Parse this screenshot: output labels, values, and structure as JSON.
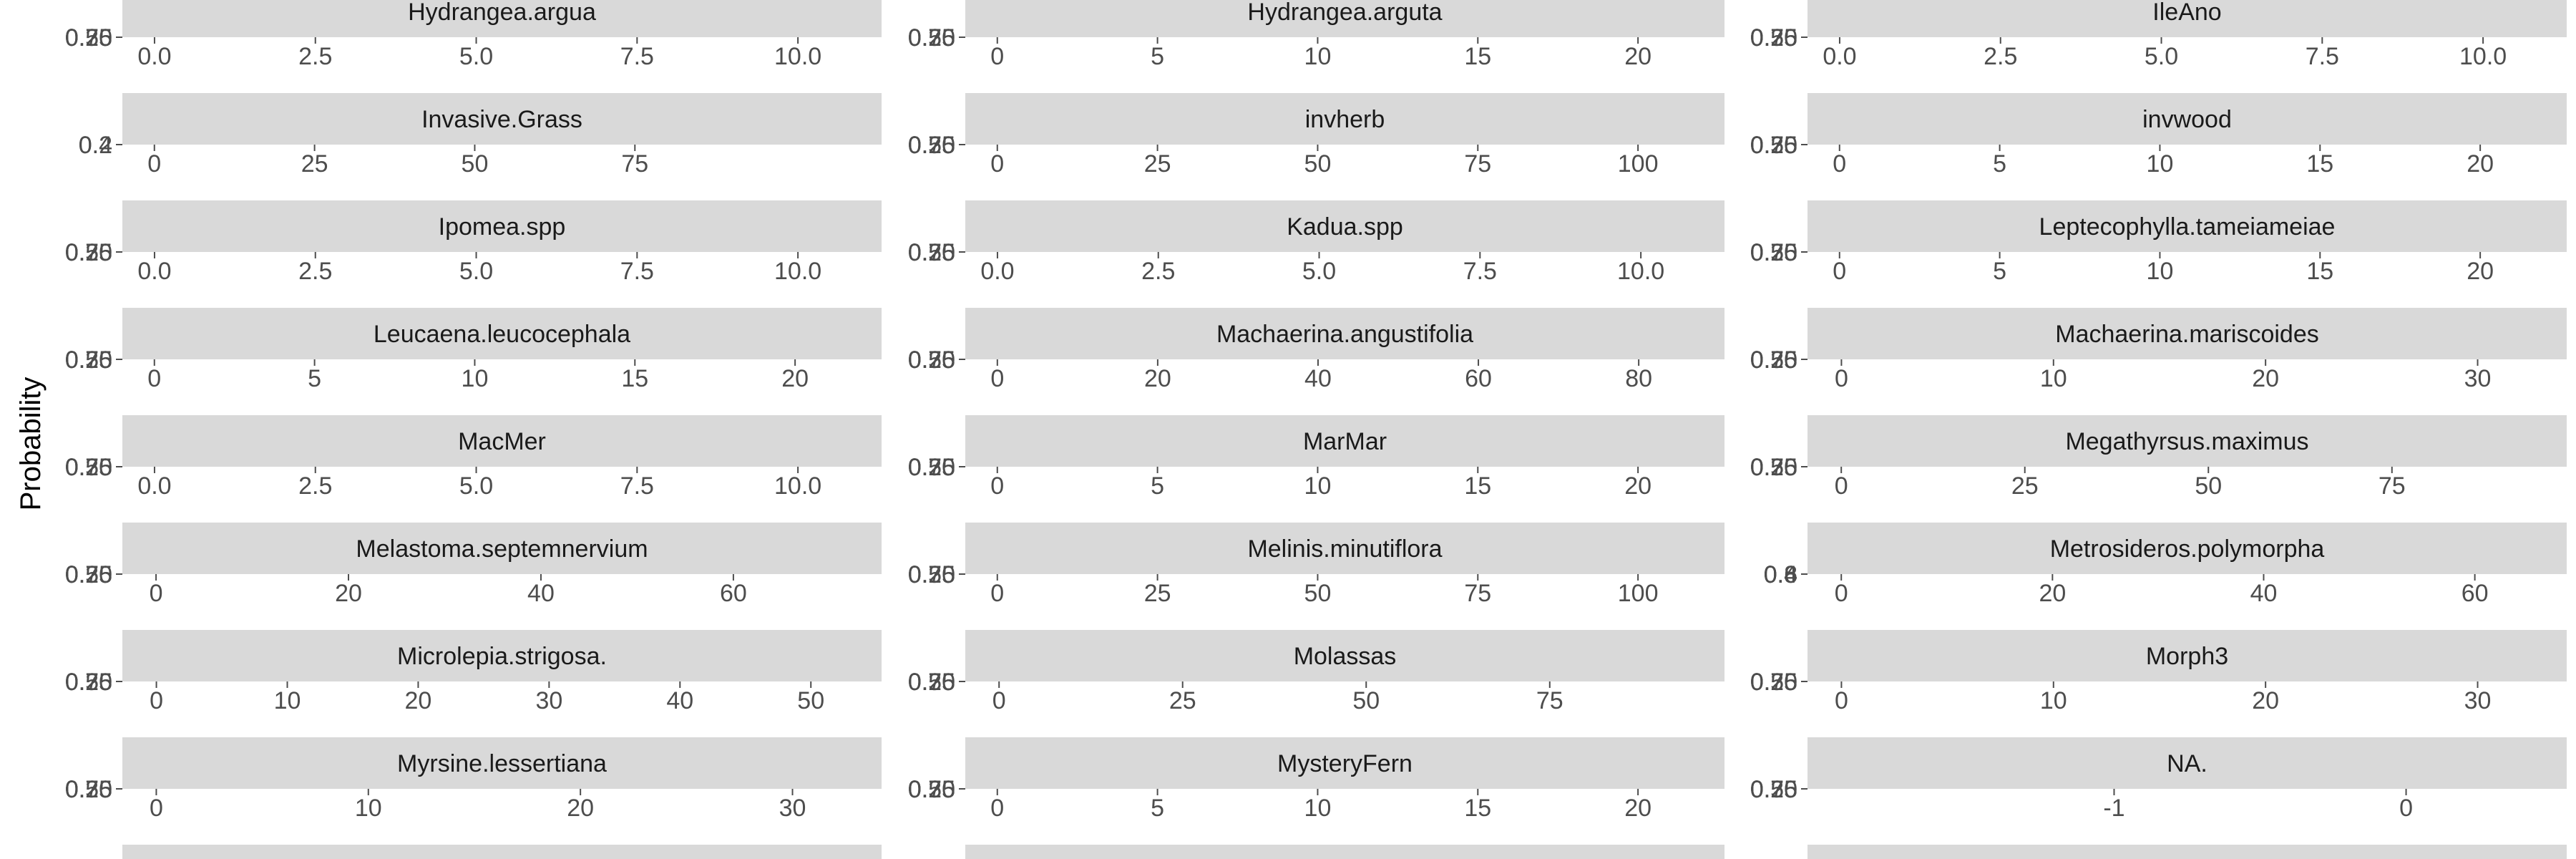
{
  "chart_data": {
    "type": "line",
    "ylabel": "Probability",
    "strip_color": "#d9d9d9",
    "tick_color": "#4d4d4d",
    "panels": [
      {
        "name": "Hydrangea.argua",
        "xlim": [
          -0.5,
          11.3
        ],
        "ticks": [
          "0.0",
          "2.5",
          "5.0",
          "7.5",
          "10.0"
        ],
        "tick_values": [
          0,
          2.5,
          5,
          7.5,
          10
        ],
        "y_overlap": [
          "0.75",
          "0.50",
          "0.25"
        ]
      },
      {
        "name": "Hydrangea.arguta",
        "xlim": [
          -1,
          22.7
        ],
        "ticks": [
          "0",
          "5",
          "10",
          "15",
          "20"
        ],
        "tick_values": [
          0,
          5,
          10,
          15,
          20
        ],
        "y_overlap": [
          "0.75",
          "0.50",
          "0.25"
        ]
      },
      {
        "name": "IleAno",
        "xlim": [
          -0.5,
          11.3
        ],
        "ticks": [
          "0.0",
          "2.5",
          "5.0",
          "7.5",
          "10.0"
        ],
        "tick_values": [
          0,
          2.5,
          5,
          7.5,
          10
        ],
        "y_overlap": [
          "0.75",
          "0.50",
          "0.25"
        ]
      },
      {
        "name": "Invasive.Grass",
        "xlim": [
          -5,
          113.5
        ],
        "ticks": [
          "0",
          "25",
          "50",
          "75"
        ],
        "tick_values": [
          0,
          25,
          50,
          75
        ],
        "y_overlap": [
          "0.4",
          "0.2"
        ]
      },
      {
        "name": "invherb",
        "xlim": [
          -5,
          113.5
        ],
        "ticks": [
          "0",
          "25",
          "50",
          "75",
          "100"
        ],
        "tick_values": [
          0,
          25,
          50,
          75,
          100
        ],
        "y_overlap": [
          "0.75",
          "0.50",
          "0.25"
        ]
      },
      {
        "name": "invwood",
        "xlim": [
          -1,
          22.7
        ],
        "ticks": [
          "0",
          "5",
          "10",
          "15",
          "20"
        ],
        "tick_values": [
          0,
          5,
          10,
          15,
          20
        ],
        "y_overlap": [
          "0.75",
          "0.50",
          "0.25"
        ]
      },
      {
        "name": "Ipomea.spp",
        "xlim": [
          -0.5,
          11.3
        ],
        "ticks": [
          "0.0",
          "2.5",
          "5.0",
          "7.5",
          "10.0"
        ],
        "tick_values": [
          0,
          2.5,
          5,
          7.5,
          10
        ],
        "y_overlap": [
          "0.75",
          "0.50",
          "0.25"
        ]
      },
      {
        "name": "Kadua.spp",
        "xlim": [
          -0.5,
          11.3
        ],
        "ticks": [
          "0.0",
          "2.5",
          "5.0",
          "7.5",
          "10.0"
        ],
        "tick_values": [
          0,
          2.5,
          5,
          7.5,
          10
        ],
        "y_overlap": [
          "0.75",
          "0.50",
          "0.25"
        ]
      },
      {
        "name": "Leptecophylla.tameiameiae",
        "xlim": [
          -1,
          22.7
        ],
        "ticks": [
          "0",
          "5",
          "10",
          "15",
          "20"
        ],
        "tick_values": [
          0,
          5,
          10,
          15,
          20
        ],
        "y_overlap": [
          "0.75",
          "0.50",
          "0.25"
        ]
      },
      {
        "name": "Leucaena.leucocephala",
        "xlim": [
          -1,
          22.7
        ],
        "ticks": [
          "0",
          "5",
          "10",
          "15",
          "20"
        ],
        "tick_values": [
          0,
          5,
          10,
          15,
          20
        ],
        "y_overlap": [
          "0.75",
          "0.50",
          "0.25"
        ]
      },
      {
        "name": "Machaerina.angustifolia",
        "xlim": [
          -4,
          90.7
        ],
        "ticks": [
          "0",
          "20",
          "40",
          "60",
          "80"
        ],
        "tick_values": [
          0,
          20,
          40,
          60,
          80
        ],
        "y_overlap": [
          "0.75",
          "0.50",
          "0.25"
        ]
      },
      {
        "name": "Machaerina.mariscoides",
        "xlim": [
          -1.6,
          34.2
        ],
        "ticks": [
          "0",
          "10",
          "20",
          "30"
        ],
        "tick_values": [
          0,
          10,
          20,
          30
        ],
        "y_overlap": [
          "0.75",
          "0.50",
          "0.25"
        ]
      },
      {
        "name": "MacMer",
        "xlim": [
          -0.5,
          11.3
        ],
        "ticks": [
          "0.0",
          "2.5",
          "5.0",
          "7.5",
          "10.0"
        ],
        "tick_values": [
          0,
          2.5,
          5,
          7.5,
          10
        ],
        "y_overlap": [
          "0.75",
          "0.50",
          "0.25"
        ]
      },
      {
        "name": "MarMar",
        "xlim": [
          -1,
          22.7
        ],
        "ticks": [
          "0",
          "5",
          "10",
          "15",
          "20"
        ],
        "tick_values": [
          0,
          5,
          10,
          15,
          20
        ],
        "y_overlap": [
          "0.75",
          "0.50",
          "0.25"
        ]
      },
      {
        "name": "Megathyrsus.maximus",
        "xlim": [
          -4.6,
          98.8
        ],
        "ticks": [
          "0",
          "25",
          "50",
          "75"
        ],
        "tick_values": [
          0,
          25,
          50,
          75
        ],
        "y_overlap": [
          "0.75",
          "0.50",
          "0.25"
        ]
      },
      {
        "name": "Melastoma.septemnervium",
        "xlim": [
          -3.5,
          75.4
        ],
        "ticks": [
          "0",
          "20",
          "40",
          "60"
        ],
        "tick_values": [
          0,
          20,
          40,
          60
        ],
        "y_overlap": [
          "0.75",
          "0.50",
          "0.25"
        ]
      },
      {
        "name": "Melinis.minutiflora",
        "xlim": [
          -5,
          113.5
        ],
        "ticks": [
          "0",
          "25",
          "50",
          "75",
          "100"
        ],
        "tick_values": [
          0,
          25,
          50,
          75,
          100
        ],
        "y_overlap": [
          "0.75",
          "0.50",
          "0.25"
        ]
      },
      {
        "name": "Metrosideros.polymorpha",
        "xlim": [
          -3.2,
          68.7
        ],
        "ticks": [
          "0",
          "20",
          "40",
          "60"
        ],
        "tick_values": [
          0,
          20,
          40,
          60
        ],
        "y_overlap": [
          "0.8",
          "0.6",
          "0.4"
        ]
      },
      {
        "name": "Microlepia.strigosa.",
        "xlim": [
          -2.6,
          55.4
        ],
        "ticks": [
          "0",
          "10",
          "20",
          "30",
          "40",
          "50"
        ],
        "tick_values": [
          0,
          10,
          20,
          30,
          40,
          50
        ],
        "y_overlap": [
          "0.75",
          "0.50",
          "0.25"
        ]
      },
      {
        "name": "Molassas",
        "xlim": [
          -4.6,
          98.8
        ],
        "ticks": [
          "0",
          "25",
          "50",
          "75"
        ],
        "tick_values": [
          0,
          25,
          50,
          75
        ],
        "y_overlap": [
          "0.75",
          "0.50",
          "0.25"
        ]
      },
      {
        "name": "Morph3",
        "xlim": [
          -1.6,
          34.2
        ],
        "ticks": [
          "0",
          "10",
          "20",
          "30"
        ],
        "tick_values": [
          0,
          10,
          20,
          30
        ],
        "y_overlap": [
          "0.75",
          "0.50",
          "0.25"
        ]
      },
      {
        "name": "Myrsine.lessertiana",
        "xlim": [
          -1.6,
          34.2
        ],
        "ticks": [
          "0",
          "10",
          "20",
          "30"
        ],
        "tick_values": [
          0,
          10,
          20,
          30
        ],
        "y_overlap": [
          "0.75",
          "0.50",
          "0.25"
        ]
      },
      {
        "name": "MysteryFern",
        "xlim": [
          -1,
          22.7
        ],
        "ticks": [
          "0",
          "5",
          "10",
          "15",
          "20"
        ],
        "tick_values": [
          0,
          5,
          10,
          15,
          20
        ],
        "y_overlap": [
          "0.75",
          "0.50",
          "0.25"
        ]
      },
      {
        "name": "NA.",
        "xlim": [
          -2.05,
          0.55
        ],
        "ticks": [
          "-1",
          "0"
        ],
        "tick_values": [
          -1,
          0
        ],
        "y_overlap": [
          "0.75",
          "0.50",
          "0.25"
        ]
      }
    ]
  }
}
